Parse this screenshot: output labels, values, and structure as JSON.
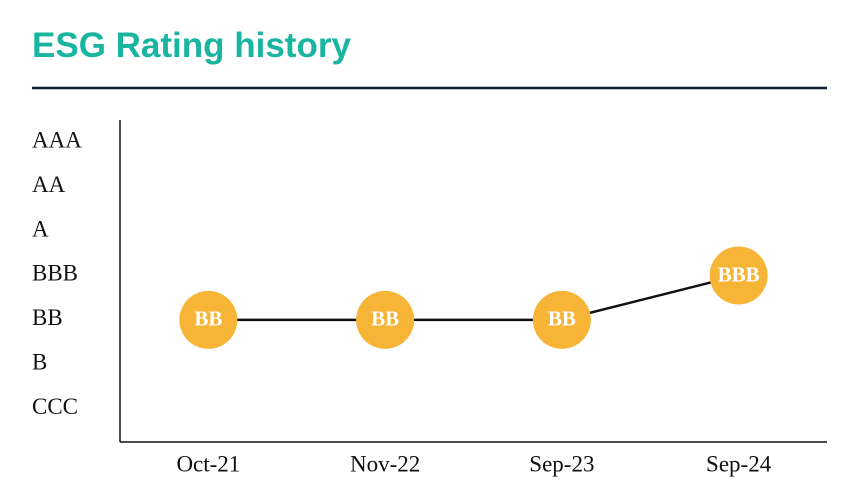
{
  "chart_data": {
    "type": "line",
    "title": "ESG Rating history",
    "categories": [
      "Oct-21",
      "Nov-22",
      "Sep-23",
      "Sep-24"
    ],
    "values": [
      3,
      3,
      3,
      4
    ],
    "value_labels": [
      "BB",
      "BB",
      "BB",
      "BBB"
    ],
    "color": "#f7b538",
    "line_color": "#111111",
    "ylim": [
      0.25,
      7.5
    ],
    "yticks": [
      {
        "value": 7,
        "label": "AAA"
      },
      {
        "value": 6,
        "label": "AA"
      },
      {
        "value": 5,
        "label": "A"
      },
      {
        "value": 4,
        "label": "BBB"
      },
      {
        "value": 3,
        "label": "BB"
      },
      {
        "value": 2,
        "label": "B"
      },
      {
        "value": 1,
        "label": "CCC"
      }
    ]
  }
}
